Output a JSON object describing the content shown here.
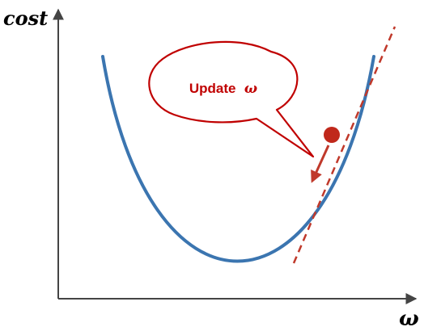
{
  "diagram": {
    "y_axis_label": "cost",
    "x_axis_label": "ω",
    "callout_text": "Update",
    "callout_symbol": "ω"
  },
  "colors": {
    "axes": "#444444",
    "curve": "#3b75b0",
    "tangent": "#c0392b",
    "point": "#c0281b",
    "callout": "#c00000",
    "arrow": "#c0392b"
  }
}
